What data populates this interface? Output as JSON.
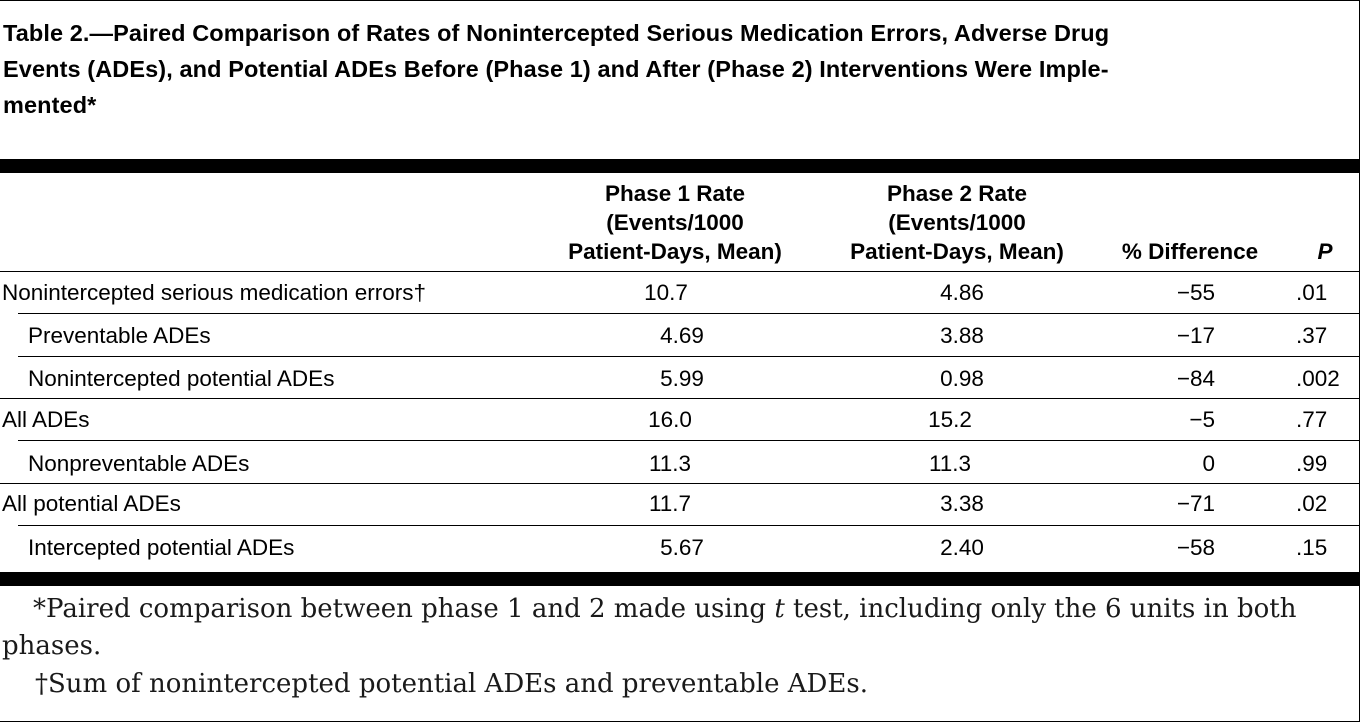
{
  "title": "Table 2.—Paired Comparison of Rates of Nonintercepted Serious Medication Errors, Adverse Drug Events (ADEs), and Potential ADEs Before (Phase 1) and After (Phase 2) Interventions Were Imple-mented*",
  "title_lines": [
    "Table 2.—Paired Comparison of Rates of Nonintercepted Serious Medication Errors, Adverse Drug",
    "Events (ADEs), and Potential ADEs Before (Phase 1) and After (Phase 2) Interventions Were Imple-",
    "mented*"
  ],
  "columns": {
    "phase1": [
      "Phase 1 Rate",
      "(Events/1000",
      "Patient-Days, Mean)"
    ],
    "phase2": [
      "Phase 2 Rate",
      "(Events/1000",
      "Patient-Days, Mean)"
    ],
    "diff": "% Difference",
    "p": "P"
  },
  "rows": [
    {
      "label": "Nonintercepted serious medication errors†",
      "phase1": "10.7",
      "phase2": "4.86",
      "diff": "−55",
      "p": ".01"
    },
    {
      "label": "Preventable ADEs",
      "phase1": "4.69",
      "phase2": "3.88",
      "diff": "−17",
      "p": ".37"
    },
    {
      "label": "Nonintercepted potential ADEs",
      "phase1": "5.99",
      "phase2": "0.98",
      "diff": "−84",
      "p": ".002"
    },
    {
      "label": "All ADEs",
      "phase1": "16.0",
      "phase2": "15.2",
      "diff": "−5",
      "p": ".77"
    },
    {
      "label": "Nonpreventable ADEs",
      "phase1": "11.3",
      "phase2": "11.3",
      "diff": "0",
      "p": ".99"
    },
    {
      "label": "All potential ADEs",
      "phase1": "11.7",
      "phase2": "3.38",
      "diff": "−71",
      "p": ".02"
    },
    {
      "label": "Intercepted potential ADEs",
      "phase1": "5.67",
      "phase2": "2.40",
      "diff": "−58",
      "p": ".15"
    }
  ],
  "footnotes": {
    "star_before": "*Paired comparison between phase 1 and 2 made using ",
    "star_italic": "t",
    "star_after": " test, including only the 6 units in both",
    "star_wrap": "phases.",
    "dagger": "†Sum of nonintercepted potential ADEs and preventable ADEs."
  }
}
